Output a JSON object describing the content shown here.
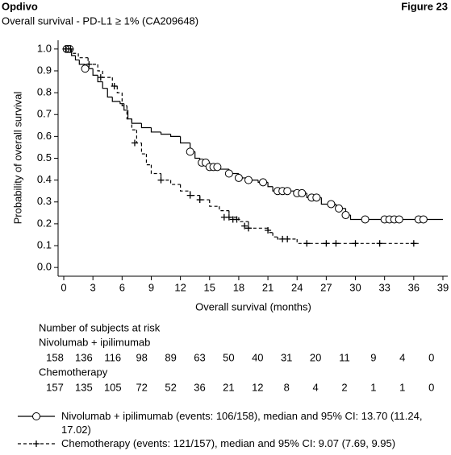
{
  "chart_data": {
    "type": "kaplan-meier",
    "header": "Opdivo",
    "figure_label": "Figure 23",
    "title": "Overall survival - PD-L1 ≥ 1% (CA209648)",
    "x_label": "Overall survival (months)",
    "y_label": "Probability of overall survival",
    "xlim": [
      -0.5,
      39.5
    ],
    "xticks": [
      0,
      3,
      6,
      9,
      12,
      15,
      18,
      21,
      24,
      27,
      30,
      33,
      36,
      39
    ],
    "ylim": [
      -0.04,
      1.04
    ],
    "yticks": [
      {
        "value": 0,
        "label": "0.0"
      },
      0.1,
      0.2,
      0.3,
      0.4,
      0.5,
      0.6,
      0.7,
      0.8,
      0.9,
      {
        "value": 1,
        "label": "1.0"
      }
    ],
    "series": [
      {
        "name": "Nivolumab + ipilimumab (events: 106/158), median and 95% CI: 13.70 (11.24, 17.02)",
        "color": "#000000",
        "dashed": false,
        "marker": "circle",
        "x": [
          0,
          0.8,
          1.2,
          1.6,
          2.2,
          3,
          3.5,
          4,
          4.5,
          5,
          5.8,
          6.2,
          6.6,
          7,
          8,
          9,
          10,
          11,
          12,
          13,
          13.5,
          14,
          15,
          16,
          17,
          18,
          19,
          20,
          21,
          21.5,
          24,
          25,
          26.5,
          28,
          29,
          29.5,
          39
        ],
        "values": [
          1.0,
          0.97,
          0.95,
          0.93,
          0.91,
          0.88,
          0.85,
          0.82,
          0.78,
          0.76,
          0.75,
          0.72,
          0.68,
          0.66,
          0.64,
          0.62,
          0.61,
          0.6,
          0.57,
          0.53,
          0.5,
          0.48,
          0.46,
          0.45,
          0.43,
          0.41,
          0.4,
          0.39,
          0.37,
          0.35,
          0.34,
          0.32,
          0.29,
          0.27,
          0.24,
          0.22,
          0.22
        ],
        "censored_x": [
          0.3,
          0.6,
          2.2,
          13,
          14.2,
          14.6,
          15,
          15.4,
          15.8,
          17,
          18,
          19,
          20.5,
          22,
          22.5,
          23,
          24,
          24.5,
          25.5,
          26,
          27.5,
          28.3,
          29,
          31,
          33,
          33.5,
          34,
          34.5,
          36.5,
          37
        ],
        "censored_values": [
          1.0,
          1.0,
          0.91,
          0.53,
          0.48,
          0.48,
          0.46,
          0.46,
          0.46,
          0.43,
          0.41,
          0.4,
          0.39,
          0.35,
          0.35,
          0.35,
          0.34,
          0.34,
          0.32,
          0.32,
          0.29,
          0.27,
          0.24,
          0.22,
          0.22,
          0.22,
          0.22,
          0.22,
          0.22,
          0.22
        ],
        "at_risk": [
          158,
          136,
          116,
          98,
          89,
          63,
          50,
          40,
          31,
          20,
          11,
          9,
          4,
          0
        ],
        "at_risk_label": "Nivolumab + ipilimumab"
      },
      {
        "name": "Chemotherapy (events: 121/157), median and 95% CI: 9.07 (7.69, 9.95)",
        "color": "#000000",
        "dashed": true,
        "marker": "plus",
        "x": [
          0,
          0.8,
          1.5,
          2.5,
          3.5,
          4,
          5,
          5.5,
          6,
          6.5,
          7,
          7.5,
          8,
          8.5,
          9,
          10,
          11,
          12,
          13,
          14,
          15,
          16,
          17,
          18,
          19,
          21,
          21.5,
          22,
          24,
          36.5
        ],
        "values": [
          1.0,
          0.98,
          0.96,
          0.93,
          0.9,
          0.87,
          0.83,
          0.8,
          0.74,
          0.68,
          0.63,
          0.57,
          0.52,
          0.47,
          0.43,
          0.4,
          0.38,
          0.35,
          0.33,
          0.31,
          0.28,
          0.26,
          0.23,
          0.21,
          0.18,
          0.16,
          0.14,
          0.13,
          0.11,
          0.11
        ],
        "censored_x": [
          0.2,
          0.5,
          0.7,
          2.6,
          3.8,
          5.2,
          7.3,
          10,
          13,
          14,
          16.5,
          17,
          17.4,
          17.8,
          18.6,
          19,
          21,
          22.5,
          23,
          25,
          27,
          28,
          30,
          32.5,
          36
        ],
        "censored_values": [
          1.0,
          1.0,
          1.0,
          0.93,
          0.87,
          0.83,
          0.57,
          0.4,
          0.33,
          0.31,
          0.23,
          0.23,
          0.22,
          0.22,
          0.19,
          0.18,
          0.17,
          0.13,
          0.13,
          0.11,
          0.11,
          0.11,
          0.11,
          0.11,
          0.11
        ],
        "at_risk": [
          157,
          135,
          105,
          72,
          52,
          36,
          21,
          12,
          8,
          4,
          2,
          1,
          1,
          0
        ],
        "at_risk_label": "Chemotherapy"
      }
    ],
    "at_risk_title": "Number of subjects at risk"
  }
}
